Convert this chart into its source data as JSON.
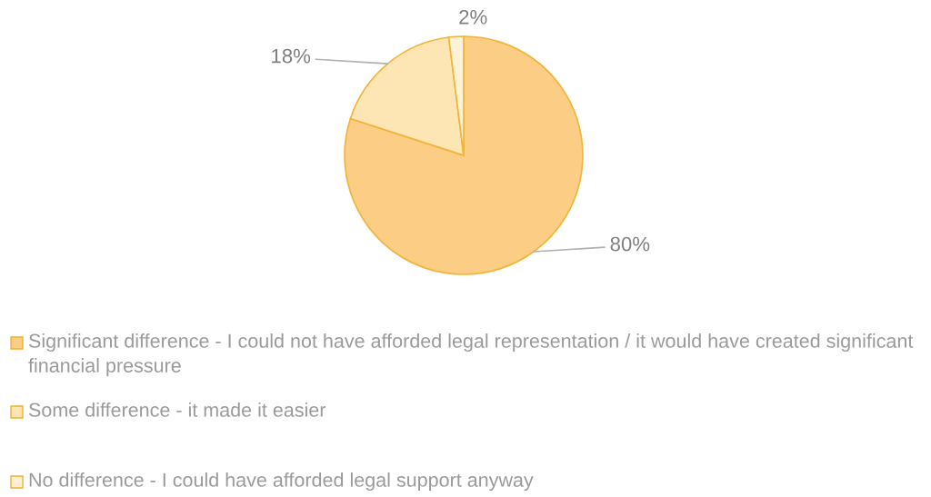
{
  "chart_data": {
    "type": "pie",
    "categories": [
      "Significant difference - I could not have afforded legal representation / it would have created significant financial pressure",
      "Some difference - it made it easier",
      "No difference - I could have afforded legal support anyway"
    ],
    "values": [
      80,
      18,
      2
    ],
    "colors": [
      "#fbcd85",
      "#fde6b3",
      "#fef2d6"
    ],
    "value_labels": [
      "80%",
      "18%",
      "2%"
    ],
    "legend": "bottom"
  }
}
